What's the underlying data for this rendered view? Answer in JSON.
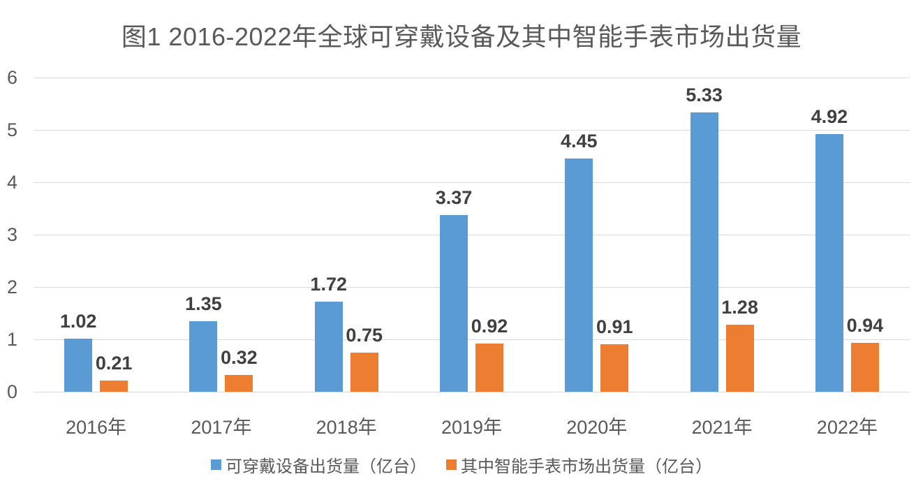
{
  "title": "图1 2016-2022年全球可穿戴设备及其中智能手表市场出货量",
  "chart_data": {
    "type": "bar",
    "categories": [
      "2016年",
      "2017年",
      "2018年",
      "2019年",
      "2020年",
      "2021年",
      "2022年"
    ],
    "series": [
      {
        "name": "可穿戴设备出货量（亿台）",
        "color": "#5B9BD5",
        "values": [
          1.02,
          1.35,
          1.72,
          3.37,
          4.45,
          5.33,
          4.92
        ],
        "data_labels": [
          "1.02",
          "1.35",
          "1.72",
          "3.37",
          "4.45",
          "5.33",
          "4.92"
        ]
      },
      {
        "name": "其中智能手表市场出货量（亿台）",
        "color": "#ED7D31",
        "values": [
          0.21,
          0.32,
          0.75,
          0.92,
          0.91,
          1.28,
          0.94
        ],
        "data_labels": [
          "0.21",
          "0.32",
          "0.75",
          "0.92",
          "0.91",
          "1.28",
          "0.94"
        ]
      }
    ],
    "title": "图1 2016-2022年全球可穿戴设备及其中智能手表市场出货量",
    "xlabel": "",
    "ylabel": "",
    "ylim": [
      0,
      6
    ],
    "yticks": [
      0,
      1,
      2,
      3,
      4,
      5,
      6
    ],
    "grid": true,
    "data_labels_shown": true,
    "legend_position": "bottom"
  },
  "colors": {
    "series_wearables": "#5B9BD5",
    "series_smartwatch": "#ED7D31",
    "gridline": "#D9D9D9",
    "axis_text": "#595959",
    "title_text": "#595959",
    "data_label_text": "#404040",
    "background": "#FFFFFF"
  }
}
